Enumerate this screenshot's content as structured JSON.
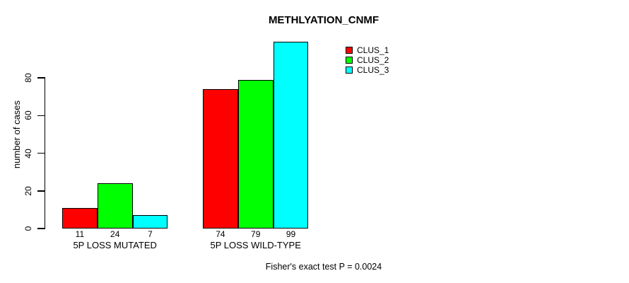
{
  "chart_data": {
    "type": "bar",
    "title": "METHLYATION_CNMF",
    "ylabel": "number of cases",
    "xlabel": "",
    "categories": [
      "5P LOSS MUTATED",
      "5P LOSS WILD-TYPE"
    ],
    "series": [
      {
        "name": "CLUS_1",
        "color": "#FF0000",
        "values": [
          11,
          74
        ]
      },
      {
        "name": "CLUS_2",
        "color": "#00FF00",
        "values": [
          24,
          79
        ]
      },
      {
        "name": "CLUS_3",
        "color": "#00FFFF",
        "values": [
          7,
          99
        ]
      }
    ],
    "yticks": [
      0,
      20,
      40,
      60,
      80
    ],
    "ylim": [
      0,
      99
    ],
    "grid": false,
    "bar_borders_color": "#000000",
    "legend_position": "top-right",
    "legend_entries": [
      "CLUS_1",
      "CLUS_2",
      "CLUS_3"
    ],
    "bar_value_labels": [
      [
        11,
        24,
        7
      ],
      [
        74,
        79,
        99
      ]
    ],
    "annotation": "Fisher's exact test P = 0.0024"
  }
}
